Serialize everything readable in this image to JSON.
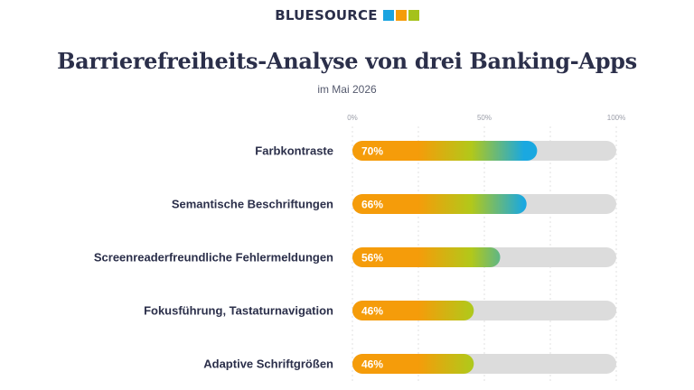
{
  "brand": {
    "name": "BLUESOURCE",
    "square_colors": [
      "#1aa3e0",
      "#f59c0a",
      "#a5c21b"
    ]
  },
  "colors": {
    "gradient_start": "#f59c0a",
    "gradient_mid": "#b2c81a",
    "gradient_end": "#1aa8e0",
    "track": "#dcdcdc",
    "text": "#2b2f4a"
  },
  "chart_data": {
    "type": "bar",
    "orientation": "horizontal",
    "title": "Barrierefreiheits-Analyse von drei Banking-Apps",
    "subtitle": "im Mai 2026",
    "categories": [
      "Farbkontraste",
      "Semantische Beschriftungen",
      "Screenreaderfreundliche Fehlermeldungen",
      "Fokusführung, Tastaturnavigation",
      "Adaptive Schriftgrößen"
    ],
    "values": [
      70,
      66,
      56,
      46,
      46
    ],
    "value_labels": [
      "70%",
      "66%",
      "56%",
      "46%",
      "46%"
    ],
    "xlim": [
      0,
      100
    ],
    "ticks": [
      0,
      50,
      100
    ],
    "tick_labels": [
      "0%",
      "50%",
      "100%"
    ],
    "grid": true
  }
}
